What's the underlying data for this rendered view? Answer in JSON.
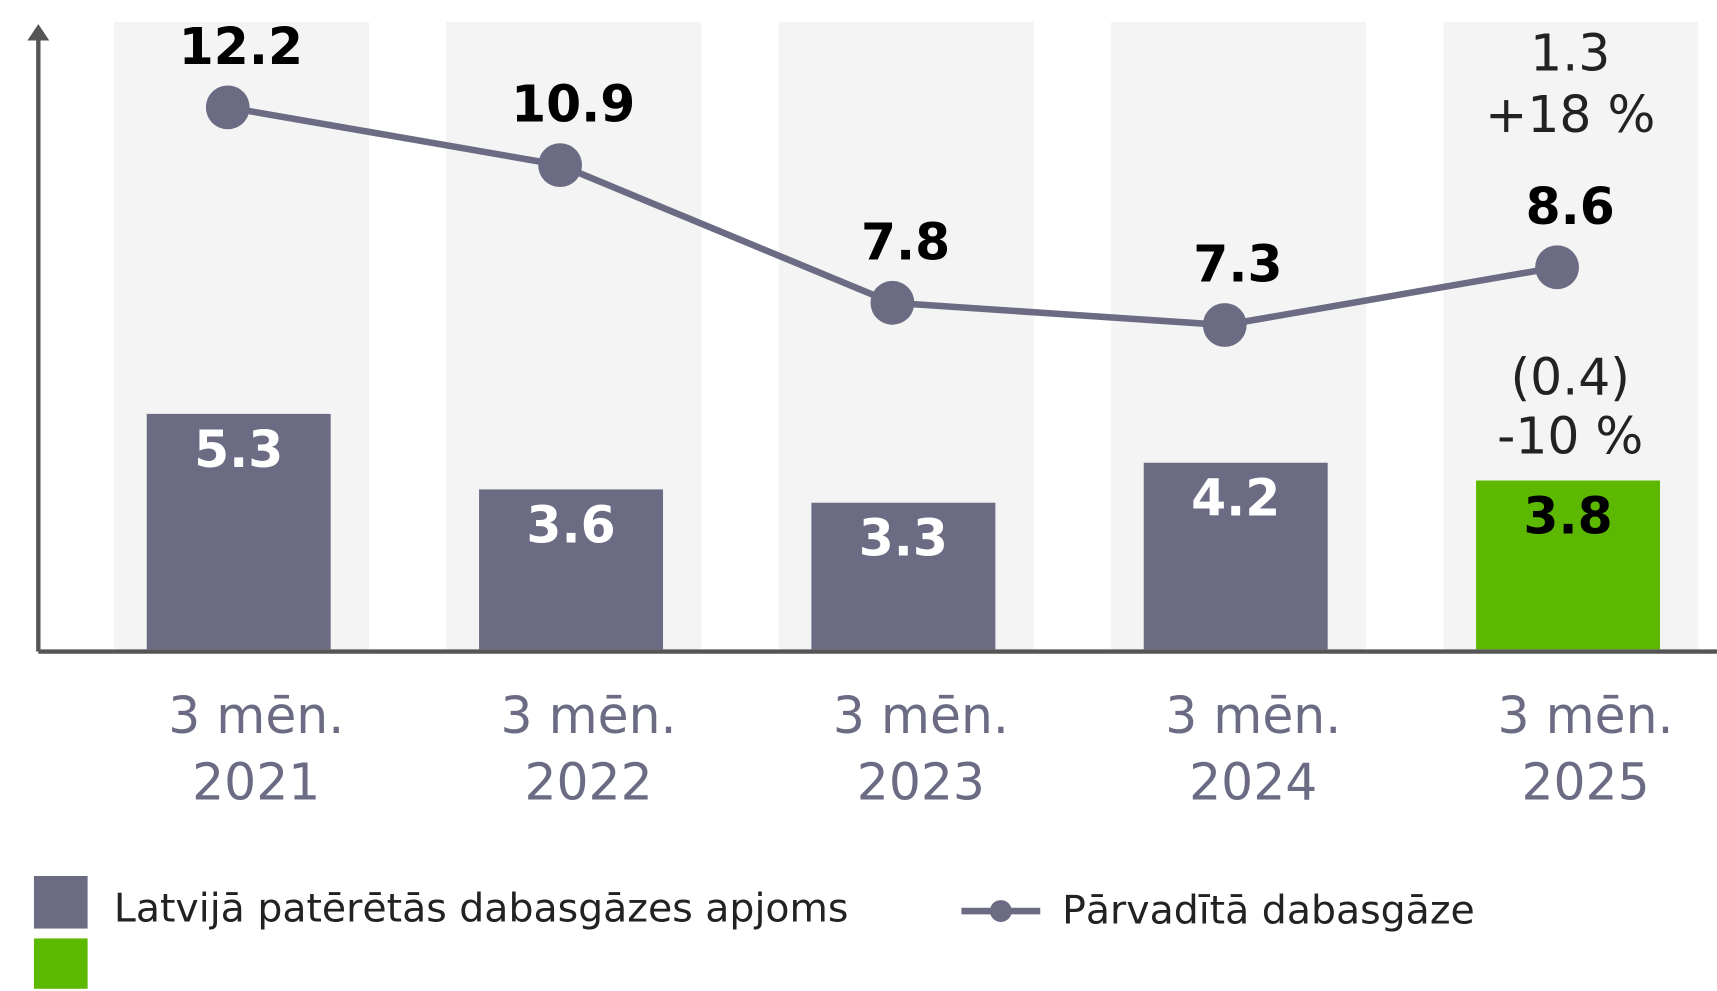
{
  "chart_data": {
    "type": "bar-line",
    "categories": [
      [
        "3 mēn.",
        "2021"
      ],
      [
        "3 mēn.",
        "2022"
      ],
      [
        "3 mēn.",
        "2023"
      ],
      [
        "3 mēn.",
        "2024"
      ],
      [
        "3 mēn.",
        "2025"
      ]
    ],
    "series": [
      {
        "name": "Latvijā patērētās dabasgāzes apjoms",
        "type": "bar",
        "color": "#6b6b84",
        "colors": [
          "#6b6b84",
          "#6b6b84",
          "#6b6b84",
          "#6b6b84",
          "#5cb800"
        ],
        "label_colors": [
          "#ffffff",
          "#ffffff",
          "#ffffff",
          "#ffffff",
          "#000000"
        ],
        "values": [
          5.3,
          3.6,
          3.3,
          4.2,
          3.8
        ]
      },
      {
        "name": "Pārvadītā dabasgāze",
        "type": "line",
        "color": "#6b6b84",
        "values": [
          12.2,
          10.9,
          7.8,
          7.3,
          8.6
        ]
      }
    ],
    "annotations": [
      "1.3",
      "+18 %",
      "(0.4)",
      "-10 %"
    ],
    "band_color": "#f3f4f3",
    "ylim": [
      0,
      14
    ]
  }
}
